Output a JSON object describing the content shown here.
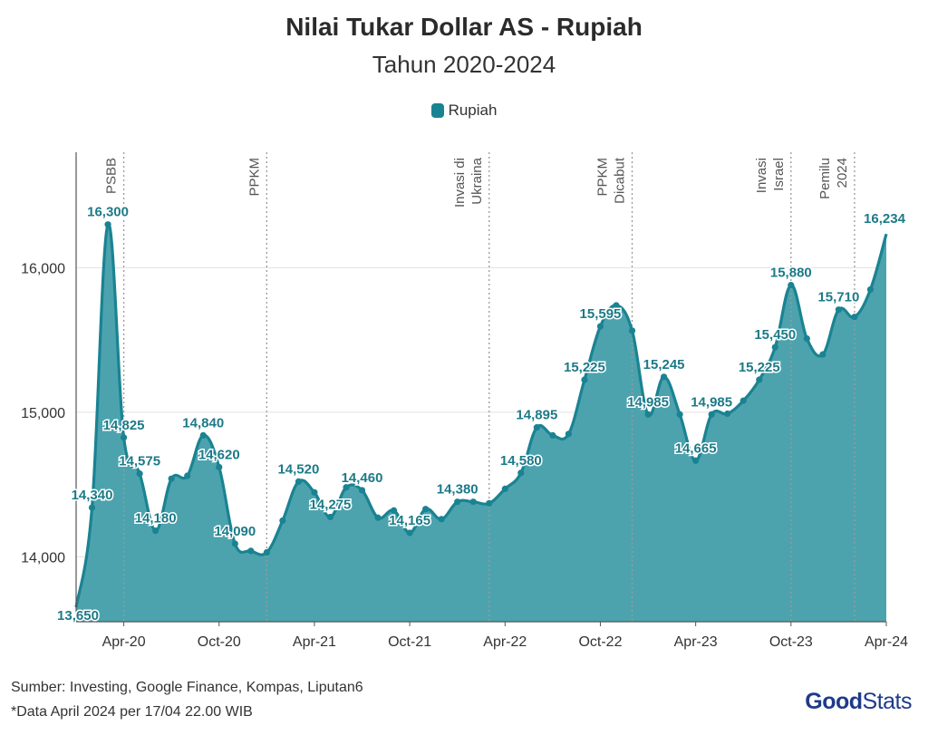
{
  "chart_data": {
    "type": "area",
    "title": "Nilai Tukar Dollar AS - Rupiah",
    "subtitle": "Tahun 2020-2024",
    "legend": [
      {
        "name": "Rupiah",
        "color": "#1a8392"
      }
    ],
    "legend_position": "top-center",
    "color": "#1a8392",
    "fill_color": "#4ca3ae",
    "grid": "horizontal",
    "ylim": [
      13550,
      16800
    ],
    "y_ticks": [
      {
        "value": 14000,
        "label": "14,000"
      },
      {
        "value": 15000,
        "label": "15,000"
      },
      {
        "value": 16000,
        "label": "16,000"
      }
    ],
    "x_ticks": [
      {
        "month": "2020-04",
        "label": "Apr-20"
      },
      {
        "month": "2020-10",
        "label": "Oct-20"
      },
      {
        "month": "2021-04",
        "label": "Apr-21"
      },
      {
        "month": "2021-10",
        "label": "Oct-21"
      },
      {
        "month": "2022-04",
        "label": "Apr-22"
      },
      {
        "month": "2022-10",
        "label": "Oct-22"
      },
      {
        "month": "2023-04",
        "label": "Apr-23"
      },
      {
        "month": "2023-10",
        "label": "Oct-23"
      },
      {
        "month": "2024-04",
        "label": "Apr-24"
      }
    ],
    "series": [
      {
        "name": "Rupiah",
        "x": [
          "2020-01",
          "2020-02",
          "2020-03",
          "2020-04",
          "2020-05",
          "2020-06",
          "2020-07",
          "2020-08",
          "2020-09",
          "2020-10",
          "2020-11",
          "2020-12",
          "2021-01",
          "2021-02",
          "2021-03",
          "2021-04",
          "2021-05",
          "2021-06",
          "2021-07",
          "2021-08",
          "2021-09",
          "2021-10",
          "2021-11",
          "2021-12",
          "2022-01",
          "2022-02",
          "2022-03",
          "2022-04",
          "2022-05",
          "2022-06",
          "2022-07",
          "2022-08",
          "2022-09",
          "2022-10",
          "2022-11",
          "2022-12",
          "2023-01",
          "2023-02",
          "2023-03",
          "2023-04",
          "2023-05",
          "2023-06",
          "2023-07",
          "2023-08",
          "2023-09",
          "2023-10",
          "2023-11",
          "2023-12",
          "2024-01",
          "2024-02",
          "2024-03",
          "2024-04"
        ],
        "values": [
          13650,
          14340,
          16300,
          14825,
          14575,
          14180,
          14540,
          14560,
          14840,
          14620,
          14090,
          14040,
          14030,
          14250,
          14520,
          14445,
          14275,
          14480,
          14460,
          14270,
          14320,
          14165,
          14330,
          14260,
          14380,
          14380,
          14370,
          14470,
          14580,
          14895,
          14840,
          14850,
          15225,
          15595,
          15740,
          15565,
          14985,
          15245,
          14985,
          14665,
          14985,
          14990,
          15080,
          15225,
          15450,
          15880,
          15510,
          15400,
          15710,
          15660,
          15850,
          16234
        ],
        "labels": [
          {
            "index": 0,
            "text": "13,650"
          },
          {
            "index": 1,
            "text": "14,340"
          },
          {
            "index": 2,
            "text": "16,300"
          },
          {
            "index": 3,
            "text": "14,825"
          },
          {
            "index": 4,
            "text": "14,575"
          },
          {
            "index": 5,
            "text": "14,180"
          },
          {
            "index": 8,
            "text": "14,840"
          },
          {
            "index": 9,
            "text": "14,620"
          },
          {
            "index": 10,
            "text": "14,090"
          },
          {
            "index": 14,
            "text": "14,520"
          },
          {
            "index": 16,
            "text": "14,275"
          },
          {
            "index": 18,
            "text": "14,460"
          },
          {
            "index": 21,
            "text": "14,165"
          },
          {
            "index": 24,
            "text": "14,380"
          },
          {
            "index": 28,
            "text": "14,580"
          },
          {
            "index": 29,
            "text": "14,895"
          },
          {
            "index": 32,
            "text": "15,225"
          },
          {
            "index": 33,
            "text": "15,595"
          },
          {
            "index": 36,
            "text": "14,985"
          },
          {
            "index": 37,
            "text": "15,245"
          },
          {
            "index": 39,
            "text": "14,665"
          },
          {
            "index": 40,
            "text": "14,985"
          },
          {
            "index": 43,
            "text": "15,225"
          },
          {
            "index": 44,
            "text": "15,450"
          },
          {
            "index": 45,
            "text": "15,880"
          },
          {
            "index": 48,
            "text": "15,710"
          },
          {
            "index": 51,
            "text": "16,234"
          }
        ]
      }
    ],
    "events": [
      {
        "month": "2020-04",
        "lines": [
          "PSBB"
        ]
      },
      {
        "month": "2021-01",
        "lines": [
          "PPKM"
        ]
      },
      {
        "month": "2022-03",
        "lines": [
          "Invasi di",
          "Ukraina"
        ]
      },
      {
        "month": "2022-12",
        "lines": [
          "PPKM",
          "Dicabut"
        ]
      },
      {
        "month": "2023-10",
        "lines": [
          "Invasi",
          "Israel"
        ]
      },
      {
        "month": "2024-02",
        "lines": [
          "Pemilu",
          "2024"
        ]
      }
    ]
  },
  "footer": {
    "source": "Sumber: Investing, Google Finance, Kompas, Liputan6",
    "note": "*Data April 2024 per 17/04 22.00 WIB",
    "brand_good": "Good",
    "brand_stats": "Stats"
  }
}
